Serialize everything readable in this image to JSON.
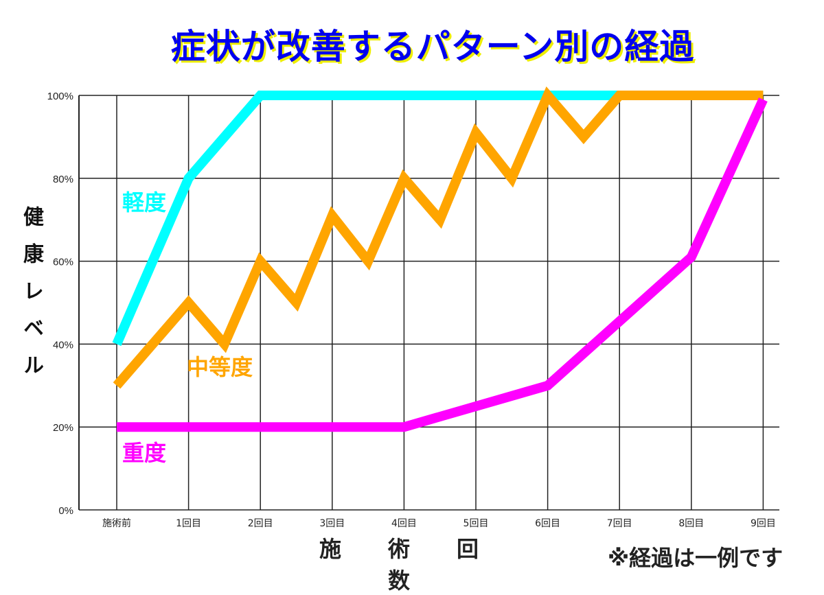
{
  "title": "症状が改善するパターン別の経過",
  "note": "※経過は一例です",
  "chart_data": {
    "type": "line",
    "title": "症状が改善するパターン別の経過",
    "xlabel": "施　術　回　数",
    "ylabel": "健康レベル",
    "categories": [
      "施術前",
      "1回目",
      "2回目",
      "3回目",
      "4回目",
      "5回目",
      "6回目",
      "7回目",
      "8回目",
      "9回目"
    ],
    "yticks": [
      "0%",
      "20%",
      "40%",
      "60%",
      "80%",
      "100%"
    ],
    "ylim": [
      0,
      100
    ],
    "grid": true,
    "series": [
      {
        "name": "軽度",
        "color": "#00FFFF",
        "x": [
          0,
          1,
          2,
          3,
          4,
          5,
          6,
          7,
          8,
          9
        ],
        "y": [
          40,
          80,
          100,
          100,
          100,
          100,
          100,
          100,
          100,
          100
        ]
      },
      {
        "name": "中等度",
        "color": "#FFA500",
        "x": [
          0,
          1,
          1.5,
          2,
          2.5,
          3,
          3.5,
          4,
          4.5,
          5,
          5.5,
          6,
          6.5,
          7,
          8,
          9
        ],
        "y": [
          30,
          50,
          40,
          60,
          50,
          71,
          60,
          80,
          70,
          91,
          80,
          100,
          90,
          100,
          100,
          100
        ]
      },
      {
        "name": "重度",
        "color": "#FF00FF",
        "x": [
          0,
          4,
          6,
          8,
          9
        ],
        "y": [
          20,
          20,
          30,
          61,
          99
        ]
      }
    ]
  }
}
